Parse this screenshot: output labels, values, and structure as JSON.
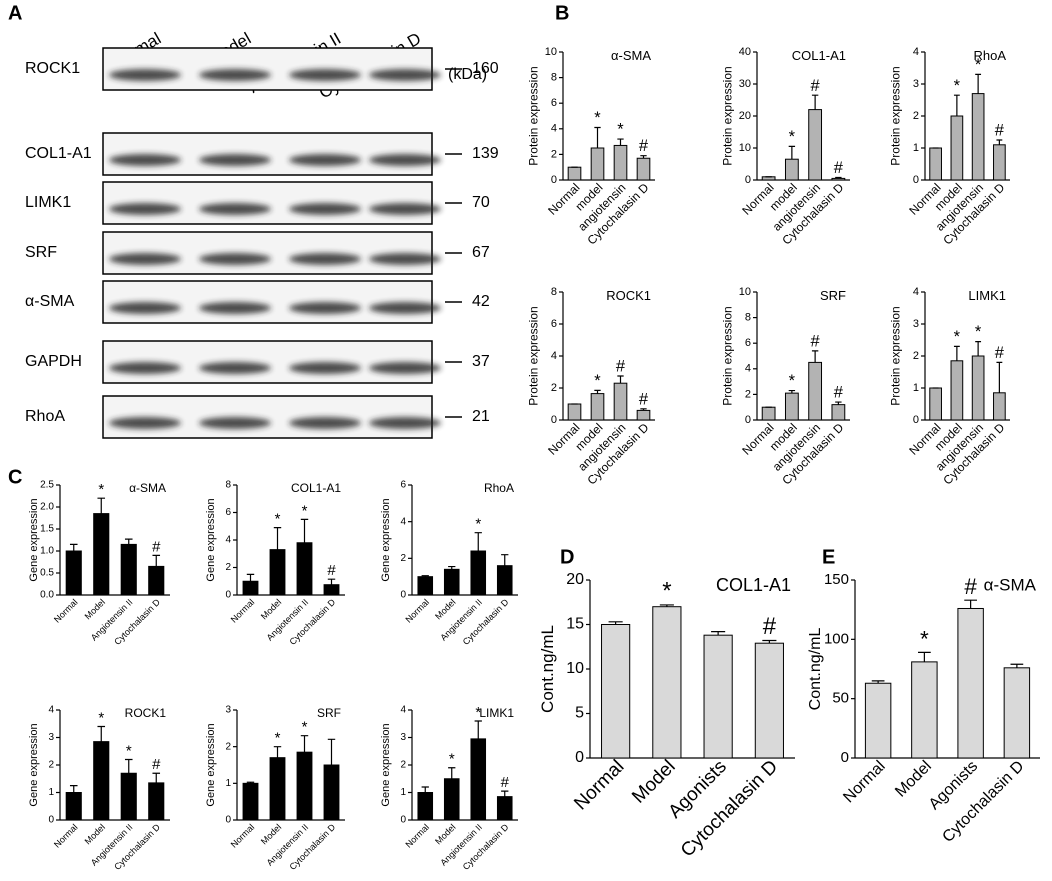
{
  "panel_labels": [
    "A",
    "B",
    "C",
    "D",
    "E"
  ],
  "blot": {
    "lanes": [
      "Normal",
      "Model",
      "Angiotensin II",
      "Cytochalasin D"
    ],
    "unit": "(kDa)",
    "rows": [
      {
        "name": "ROCK1",
        "kda": 160
      },
      {
        "name": "COL1-A1",
        "kda": 139
      },
      {
        "name": "LIMK1",
        "kda": 70
      },
      {
        "name": "SRF",
        "kda": 67
      },
      {
        "name": "α-SMA",
        "kda": 42
      },
      {
        "name": "GAPDH",
        "kda": 37
      },
      {
        "name": "RhoA",
        "kda": 21
      }
    ]
  },
  "chart_data": [
    {
      "type": "bar",
      "title": "α-SMA",
      "ylabel": "Protein expression",
      "categories": [
        "Normal",
        "model",
        "angiotensin",
        "Cytochalasin D"
      ],
      "values": [
        1,
        2.5,
        2.7,
        1.7
      ],
      "errors": [
        0,
        1.6,
        0.5,
        0.2
      ],
      "markers": [
        null,
        "*",
        "*",
        "#"
      ],
      "ylim": [
        0,
        10
      ],
      "yticks": [
        0,
        2,
        4,
        6,
        8,
        10
      ],
      "color": "#b3b3b3"
    },
    {
      "type": "bar",
      "title": "COL1-A1",
      "ylabel": "Protein expression",
      "categories": [
        "Normal",
        "model",
        "angiotensin",
        "Cytochalasin D"
      ],
      "values": [
        1,
        6.5,
        22,
        0.5
      ],
      "errors": [
        0,
        4,
        4.5,
        0.3
      ],
      "markers": [
        null,
        "*",
        "#",
        "#"
      ],
      "ylim": [
        0,
        40
      ],
      "yticks": [
        0,
        10,
        20,
        30,
        40
      ],
      "color": "#b3b3b3"
    },
    {
      "type": "bar",
      "title": "RhoA",
      "ylabel": "Protein expression",
      "categories": [
        "Normal",
        "model",
        "angiotensin",
        "Cytochalasin D"
      ],
      "values": [
        1,
        2,
        2.7,
        1.1
      ],
      "errors": [
        0,
        0.65,
        0.6,
        0.15
      ],
      "markers": [
        null,
        "*",
        "*",
        "#"
      ],
      "ylim": [
        0,
        4
      ],
      "yticks": [
        0,
        1,
        2,
        3,
        4
      ],
      "color": "#b3b3b3"
    },
    {
      "type": "bar",
      "title": "ROCK1",
      "ylabel": "Protein expression",
      "categories": [
        "Normal",
        "model",
        "angiotensin",
        "Cytochalasin D"
      ],
      "values": [
        1,
        1.65,
        2.3,
        0.6
      ],
      "errors": [
        0,
        0.2,
        0.45,
        0.1
      ],
      "markers": [
        null,
        "*",
        "#",
        "#"
      ],
      "ylim": [
        0,
        8
      ],
      "yticks": [
        0,
        2,
        4,
        6,
        8
      ],
      "color": "#b3b3b3"
    },
    {
      "type": "bar",
      "title": "SRF",
      "ylabel": "Protein expression",
      "categories": [
        "Normal",
        "model",
        "angiotensin",
        "Cytochalasin D"
      ],
      "values": [
        1,
        2.1,
        4.5,
        1.2
      ],
      "errors": [
        0,
        0.2,
        0.9,
        0.2
      ],
      "markers": [
        null,
        "*",
        "#",
        "#"
      ],
      "ylim": [
        0,
        10
      ],
      "yticks": [
        0,
        2,
        4,
        6,
        8,
        10
      ],
      "color": "#b3b3b3"
    },
    {
      "type": "bar",
      "title": "LIMK1",
      "ylabel": "Protein expression",
      "categories": [
        "Normal",
        "model",
        "angiotensin",
        "Cytochalasin D"
      ],
      "values": [
        1,
        1.85,
        2,
        0.85
      ],
      "errors": [
        0,
        0.45,
        0.45,
        0.95
      ],
      "markers": [
        null,
        "*",
        "*",
        "#"
      ],
      "ylim": [
        0,
        4
      ],
      "yticks": [
        0,
        1,
        2,
        3,
        4
      ],
      "color": "#b3b3b3"
    },
    {
      "type": "bar",
      "title": "α-SMA",
      "ylabel": "Gene expression",
      "categories": [
        "Normal",
        "Model",
        "Angiotensin II",
        "Cytochalasin D"
      ],
      "values": [
        1,
        1.85,
        1.15,
        0.65
      ],
      "errors": [
        0.15,
        0.35,
        0.12,
        0.25
      ],
      "markers": [
        null,
        "*",
        null,
        "#"
      ],
      "ylim": [
        0,
        2.5
      ],
      "yticks": [
        {
          "value": 0,
          "label": "0.0"
        },
        0.5,
        {
          "value": 1,
          "label": "1.0"
        },
        1.5,
        {
          "value": 2,
          "label": "2.0"
        },
        2.5
      ],
      "color": "#000000"
    },
    {
      "type": "bar",
      "title": "COL1-A1",
      "ylabel": "Gene expression",
      "categories": [
        "Normal",
        "Model",
        "Angiotensin II",
        "Cytochalasin D"
      ],
      "values": [
        1,
        3.3,
        3.8,
        0.75
      ],
      "errors": [
        0.5,
        1.6,
        1.7,
        0.4
      ],
      "markers": [
        null,
        "*",
        "*",
        "#"
      ],
      "ylim": [
        0,
        8
      ],
      "yticks": [
        0,
        2,
        4,
        6,
        8
      ],
      "color": "#000000"
    },
    {
      "type": "bar",
      "title": "RhoA",
      "ylabel": "Gene expression",
      "categories": [
        "Normal",
        "Model",
        "Angiotensin II",
        "Cytochalasin D"
      ],
      "values": [
        1,
        1.4,
        2.4,
        1.6
      ],
      "errors": [
        0.05,
        0.15,
        1,
        0.6
      ],
      "markers": [
        null,
        null,
        "*",
        null
      ],
      "ylim": [
        0,
        6
      ],
      "yticks": [
        0,
        2,
        4,
        6
      ],
      "color": "#000000"
    },
    {
      "type": "bar",
      "title": "ROCK1",
      "ylabel": "Gene expression",
      "categories": [
        "Normal",
        "Model",
        "Angiotensin II",
        "Cytochalasin D"
      ],
      "values": [
        1,
        2.85,
        1.7,
        1.35
      ],
      "errors": [
        0.25,
        0.55,
        0.5,
        0.35
      ],
      "markers": [
        null,
        "*",
        "*",
        "#"
      ],
      "ylim": [
        0,
        4
      ],
      "yticks": [
        0,
        1,
        2,
        3,
        4
      ],
      "color": "#000000"
    },
    {
      "type": "bar",
      "title": "SRF",
      "ylabel": "Gene expression",
      "categories": [
        "Normal",
        "Model",
        "Angiotensin II",
        "Cytochalasin D"
      ],
      "values": [
        1,
        1.7,
        1.85,
        1.5
      ],
      "errors": [
        0.03,
        0.3,
        0.45,
        0.7
      ],
      "markers": [
        null,
        "*",
        "*",
        null
      ],
      "ylim": [
        0,
        3
      ],
      "yticks": [
        0,
        1,
        2,
        3
      ],
      "color": "#000000"
    },
    {
      "type": "bar",
      "title": "LIMK1",
      "ylabel": "Gene expression",
      "categories": [
        "Normal",
        "Model",
        "Angiotensin II",
        "Cytochalasin D"
      ],
      "values": [
        1,
        1.5,
        2.95,
        0.85
      ],
      "errors": [
        0.2,
        0.4,
        0.65,
        0.2
      ],
      "markers": [
        null,
        "*",
        "*",
        "#"
      ],
      "ylim": [
        0,
        4
      ],
      "yticks": [
        0,
        1,
        2,
        3,
        4
      ],
      "color": "#000000"
    },
    {
      "type": "bar",
      "title": "COL1-A1",
      "ylabel": "Cont.ng/mL",
      "categories": [
        "Normal",
        "Model",
        "Agonists",
        "Cytochalasin D"
      ],
      "values": [
        15,
        17,
        13.8,
        12.9
      ],
      "errors": [
        0.3,
        0.2,
        0.4,
        0.3
      ],
      "markers": [
        null,
        "*",
        null,
        "#"
      ],
      "ylim": [
        0,
        20
      ],
      "yticks": [
        0,
        5,
        10,
        15,
        20
      ],
      "color": "#d9d9d9"
    },
    {
      "type": "bar",
      "title": "α-SMA",
      "ylabel": "Cont.ng/mL",
      "categories": [
        "Normal",
        "Model",
        "Agonists",
        "Cytochalasin D"
      ],
      "values": [
        63,
        81,
        126,
        76
      ],
      "errors": [
        2,
        8,
        7,
        3
      ],
      "markers": [
        null,
        "*",
        "#",
        null
      ],
      "ylim": [
        0,
        150
      ],
      "yticks": [
        0,
        50,
        100,
        150
      ],
      "color": "#d9d9d9"
    }
  ]
}
